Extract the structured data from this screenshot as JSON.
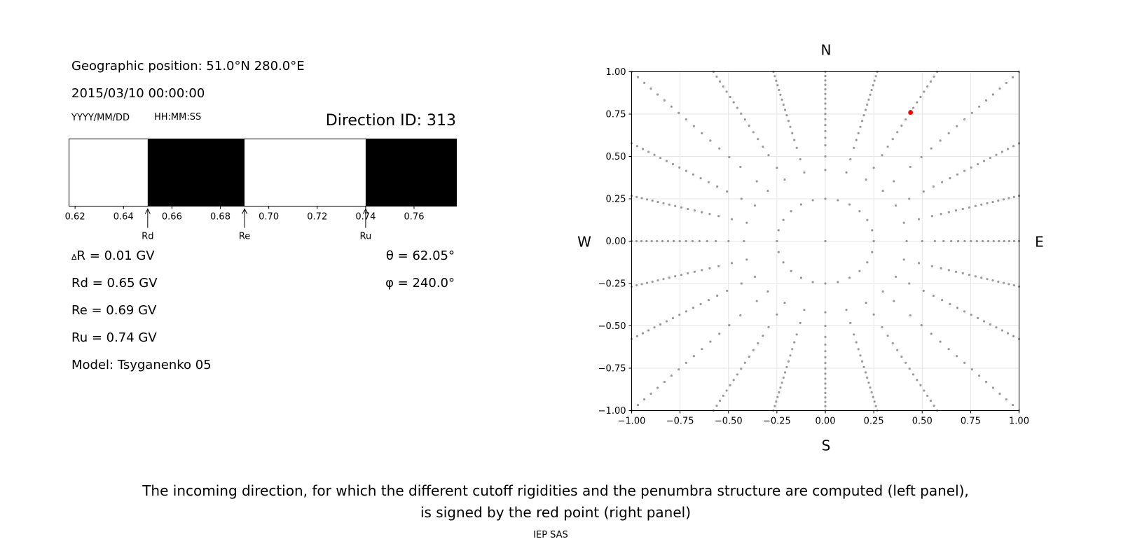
{
  "left_panel": {
    "geo_position": "Geographic position: 51.0°N 280.0°E",
    "datetime": "2015/03/10 00:00:00",
    "date_format_label": "YYYY/MM/DD",
    "time_format_label": "HH:MM:SS",
    "direction_id": "Direction ID: 313",
    "delta_r": "R = 0.01 GV",
    "delta_symbol": "Δ",
    "rd": "Rd = 0.65 GV",
    "re": "Re = 0.69 GV",
    "ru": "Ru = 0.74 GV",
    "model": "Model: Tsyganenko 05",
    "theta": "θ = 62.05°",
    "phi": "φ = 240.0°"
  },
  "chart_data": [
    {
      "type": "bar",
      "name": "penumbra",
      "xlim": [
        0.6175,
        0.7775
      ],
      "xticks": [
        "0.62",
        "0.64",
        "0.66",
        "0.68",
        "0.70",
        "0.72",
        "0.74",
        "0.76"
      ],
      "xtick_values": [
        0.62,
        0.64,
        0.66,
        0.68,
        0.7,
        0.72,
        0.74,
        0.76
      ],
      "segments": [
        {
          "from": 0.6175,
          "to": 0.65,
          "state": "allowed",
          "color": "#ffffff"
        },
        {
          "from": 0.65,
          "to": 0.69,
          "state": "forbidden",
          "color": "#000000"
        },
        {
          "from": 0.69,
          "to": 0.74,
          "state": "allowed",
          "color": "#ffffff"
        },
        {
          "from": 0.74,
          "to": 0.7775,
          "state": "forbidden",
          "color": "#000000"
        }
      ],
      "markers": [
        {
          "label": "Rd",
          "value": 0.65
        },
        {
          "label": "Re",
          "value": 0.69
        },
        {
          "label": "Ru",
          "value": 0.74
        }
      ]
    },
    {
      "type": "scatter",
      "name": "directions",
      "xlim": [
        -1.0,
        1.0
      ],
      "ylim": [
        -1.0,
        1.0
      ],
      "grid": true,
      "xticks": [
        "−1.00",
        "−0.75",
        "−0.50",
        "−0.25",
        "0.00",
        "0.25",
        "0.50",
        "0.75",
        "1.00"
      ],
      "yticks": [
        "1.00",
        "0.75",
        "0.50",
        "0.25",
        "0.00",
        "−0.25",
        "−0.50",
        "−0.75",
        "−1.00"
      ],
      "compass": {
        "north": "N",
        "south": "S",
        "west": "W",
        "east": "E"
      },
      "point_color": "#999999",
      "pattern": {
        "center": [
          0,
          0
        ],
        "ring_radii": [
          0.25,
          0.42
        ],
        "rings": [
          {
            "radius": 0.25,
            "count": 24
          },
          {
            "radius": 0.42,
            "count": 24
          }
        ],
        "spokes": {
          "count": 24,
          "r_start": 0.5,
          "r_end": 1.0,
          "points_per_spoke": 16
        },
        "clip": [
          -1.0,
          1.0
        ]
      },
      "highlight": {
        "x": 0.44,
        "y": 0.76,
        "color": "#ff0000"
      }
    }
  ],
  "caption": {
    "line1": "The incoming direction, for which the different cutoff rigidities and the penumbra structure are computed (left panel),",
    "line2": "is signed by the red point (right panel)"
  },
  "footer": "IEP SAS"
}
